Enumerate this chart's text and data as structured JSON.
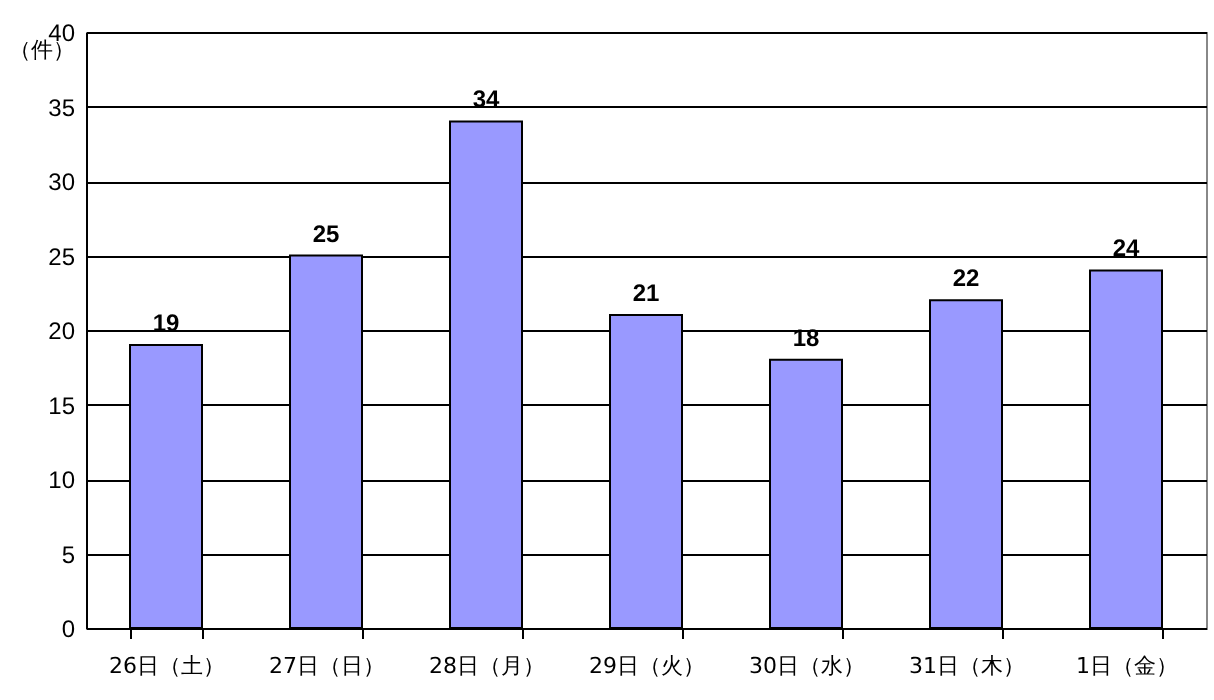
{
  "chart_data": {
    "type": "bar",
    "ylabel": "（件）",
    "categories": [
      "26日（土）",
      "27日（日）",
      "28日（月）",
      "29日（火）",
      "30日（水）",
      "31日（木）",
      "1日（金）"
    ],
    "values": [
      19,
      25,
      34,
      21,
      18,
      22,
      24
    ],
    "color": "#9999ff",
    "ylim": [
      0,
      40
    ],
    "yticks": [
      0,
      5,
      10,
      15,
      20,
      25,
      30,
      35,
      40
    ],
    "grid": "y",
    "data_labels": true
  }
}
